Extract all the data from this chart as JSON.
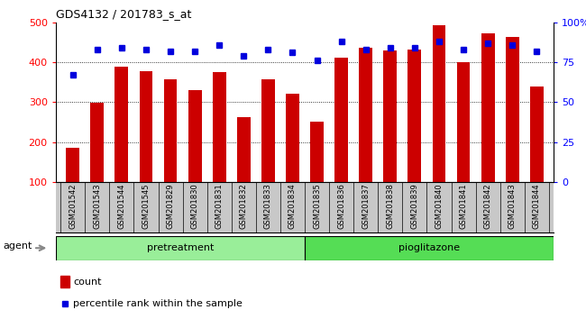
{
  "title": "GDS4132 / 201783_s_at",
  "samples": [
    "GSM201542",
    "GSM201543",
    "GSM201544",
    "GSM201545",
    "GSM201829",
    "GSM201830",
    "GSM201831",
    "GSM201832",
    "GSM201833",
    "GSM201834",
    "GSM201835",
    "GSM201836",
    "GSM201837",
    "GSM201838",
    "GSM201839",
    "GSM201840",
    "GSM201841",
    "GSM201842",
    "GSM201843",
    "GSM201844"
  ],
  "counts": [
    185,
    298,
    388,
    378,
    357,
    330,
    375,
    262,
    357,
    320,
    252,
    412,
    437,
    430,
    432,
    493,
    401,
    472,
    463,
    340
  ],
  "percentiles": [
    67,
    83,
    84,
    83,
    82,
    82,
    86,
    79,
    83,
    81,
    76,
    88,
    83,
    84,
    84,
    88,
    83,
    87,
    86,
    82
  ],
  "group_labels": [
    "pretreatment",
    "pioglitazone"
  ],
  "group_split": 10,
  "bar_color": "#CC0000",
  "dot_color": "#0000DD",
  "ylim_left": [
    100,
    500
  ],
  "ylim_right": [
    0,
    100
  ],
  "yticks_left": [
    100,
    200,
    300,
    400,
    500
  ],
  "yticks_right": [
    0,
    25,
    50,
    75,
    100
  ],
  "yticklabels_right": [
    "0",
    "25",
    "50",
    "75",
    "100%"
  ],
  "grid_values": [
    200,
    300,
    400
  ],
  "plot_bg": "#FFFFFF",
  "xtick_bg": "#C8C8C8",
  "group1_color": "#99EE99",
  "group2_color": "#55DD55",
  "agent_label": "agent",
  "legend_count_label": "count",
  "legend_pct_label": "percentile rank within the sample"
}
